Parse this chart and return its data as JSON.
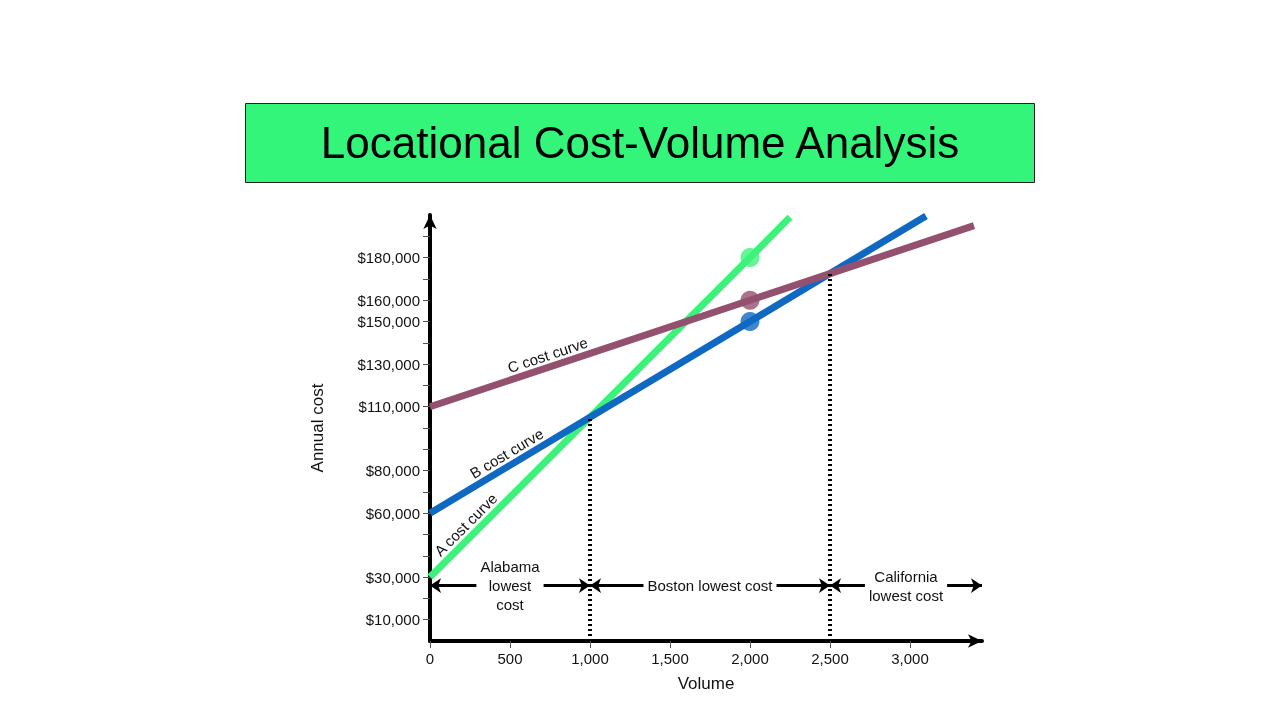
{
  "chart_data": {
    "type": "line",
    "title": "Locational Cost-Volume Analysis",
    "xlabel": "Volume",
    "ylabel": "Annual cost",
    "xlim": [
      0,
      3450
    ],
    "ylim": [
      0,
      200000
    ],
    "xticks": [
      0,
      500,
      {
        "value": 1000,
        "label": "1,000"
      },
      {
        "value": 1500,
        "label": "1,500"
      },
      {
        "value": 2000,
        "label": "2,000"
      },
      {
        "value": 2500,
        "label": "2,500"
      },
      {
        "value": 3000,
        "label": "3,000"
      }
    ],
    "yticks": [
      {
        "value": 10000,
        "label": "$10,000"
      },
      {
        "value": 20000,
        "label": null
      },
      {
        "value": 30000,
        "label": "$30,000"
      },
      {
        "value": 40000,
        "label": null
      },
      {
        "value": 50000,
        "label": null
      },
      {
        "value": 60000,
        "label": "$60,000"
      },
      {
        "value": 70000,
        "label": null
      },
      {
        "value": 80000,
        "label": "$80,000"
      },
      {
        "value": 90000,
        "label": null
      },
      {
        "value": 100000,
        "label": null
      },
      {
        "value": 110000,
        "label": "$110,000"
      },
      {
        "value": 120000,
        "label": null
      },
      {
        "value": 130000,
        "label": "$130,000"
      },
      {
        "value": 140000,
        "label": null
      },
      {
        "value": 150000,
        "label": "$150,000"
      },
      {
        "value": 160000,
        "label": "$160,000"
      },
      {
        "value": 170000,
        "label": null
      },
      {
        "value": 180000,
        "label": "$180,000"
      },
      {
        "value": 190000,
        "label": null
      }
    ],
    "series": [
      {
        "name": "A cost curve",
        "color": "#3df27a",
        "x": [
          0,
          1000,
          2000,
          2250
        ],
        "values": [
          30000,
          105000,
          180000,
          199000
        ]
      },
      {
        "name": "B cost curve",
        "color": "#0f68c2",
        "x": [
          0,
          1000,
          2000,
          2500,
          3100
        ],
        "values": [
          60000,
          105000,
          150000,
          172500,
          199500
        ]
      },
      {
        "name": "C cost curve",
        "color": "#93506f",
        "x": [
          0,
          2000,
          2500,
          3400
        ],
        "values": [
          110000,
          160000,
          172500,
          195000
        ]
      },
      {
        "type": "scatter",
        "marker": "circle",
        "x": [
          2000,
          2000,
          2000
        ],
        "values": [
          180000,
          160000,
          150000
        ],
        "colors": [
          "#3df27a",
          "#93506f",
          "#0f68c2"
        ]
      }
    ],
    "ref_lines": [
      {
        "axis": "x",
        "value": 1000,
        "line_style": "dotted",
        "color": "#000000"
      },
      {
        "axis": "x",
        "value": 2500,
        "line_style": "dotted",
        "color": "#000000"
      }
    ],
    "annotations": [
      "Alabama\nlowest\ncost",
      "Boston lowest cost",
      "California\nlowest cost"
    ],
    "grid": false,
    "legend": false,
    "marker": "none",
    "line_style": "solid"
  }
}
